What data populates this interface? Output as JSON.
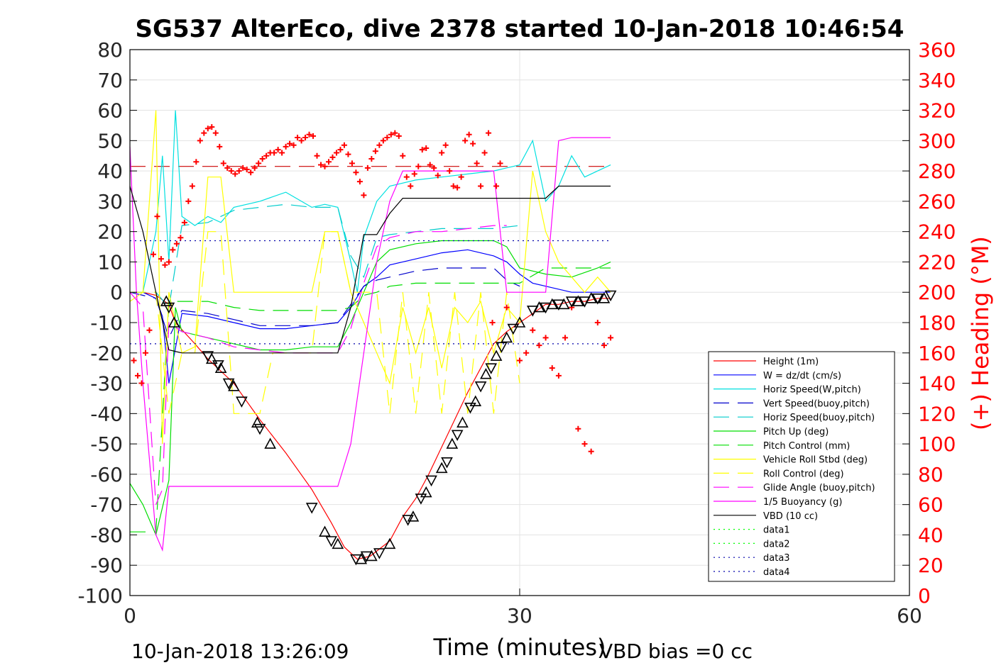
{
  "chart_data": {
    "type": "line",
    "title": "SG537 AlterEco, dive 2378 started 10-Jan-2018 10:46:54",
    "xlabel": "Time (minutes)",
    "ylabel_right": "(+) Heading (°M)",
    "xlim": [
      0,
      60
    ],
    "ylim": [
      -100,
      80
    ],
    "ylim_right": [
      0,
      360
    ],
    "xticks": [
      "0",
      "30",
      "60"
    ],
    "yticks": [
      "80",
      "70",
      "60",
      "50",
      "40",
      "30",
      "20",
      "10",
      "0",
      "-10",
      "-20",
      "-30",
      "-40",
      "-50",
      "-60",
      "-70",
      "-80",
      "-90",
      "-100"
    ],
    "yticks_right": [
      "360",
      "340",
      "320",
      "300",
      "280",
      "260",
      "240",
      "220",
      "200",
      "180",
      "160",
      "140",
      "120",
      "100",
      "80",
      "60",
      "40",
      "20",
      "0"
    ],
    "grid": true,
    "legend_position": "lower-right",
    "footer_left": "10-Jan-2018 13:26:09",
    "footer_right": "VBD bias =0 cc",
    "colors": {
      "heading": "#ff0000",
      "right_axis": "#ff0000"
    },
    "series": [
      {
        "name": "Height (1m)",
        "color": "#ff0000",
        "style": "solid",
        "x": [
          0,
          1,
          2,
          3,
          3.5,
          5,
          6,
          8,
          10,
          12,
          14,
          15.5,
          16.5,
          17.5,
          18.5,
          20,
          21,
          22,
          23,
          24,
          25,
          26,
          27,
          28,
          29,
          30,
          31,
          32,
          33,
          34,
          35,
          36,
          37
        ],
        "y": [
          0,
          0,
          -1,
          -4,
          -10,
          -17,
          -22,
          -30,
          -42,
          -53,
          -65,
          -76,
          -84,
          -88,
          -87,
          -82,
          -74,
          -68,
          -60,
          -51,
          -42,
          -33,
          -25,
          -17,
          -13,
          -10,
          -7,
          -4,
          -4,
          -3,
          -3,
          -2,
          -2
        ]
      },
      {
        "name": "W = dz/dt (cm/s)",
        "color": "#0000ff",
        "style": "solid",
        "x": [
          0,
          1,
          2,
          2.5,
          3,
          4,
          6,
          8,
          10,
          12,
          14,
          16,
          17,
          18,
          19,
          20,
          22,
          24,
          26,
          28,
          29,
          30,
          31,
          32,
          33,
          34,
          35,
          36,
          37
        ],
        "y": [
          0,
          0,
          -2,
          -8,
          -30,
          -7,
          -8,
          -10,
          -12,
          -12,
          -11,
          -10,
          -5,
          2,
          5,
          9,
          11,
          13,
          14,
          12,
          10,
          6,
          3,
          2,
          1,
          0,
          0,
          0,
          0
        ]
      },
      {
        "name": "Horiz Speed(W,pitch)",
        "color": "#00e0e0",
        "style": "solid",
        "x": [
          0,
          1,
          2,
          2.5,
          3,
          3.5,
          4,
          5,
          6,
          7,
          8,
          10,
          12,
          14,
          15,
          16,
          17,
          17.5,
          18,
          19,
          20,
          22,
          24,
          26,
          28,
          29,
          30,
          31,
          32,
          33,
          34,
          35,
          36,
          37
        ],
        "y": [
          0,
          0,
          20,
          45,
          10,
          60,
          25,
          22,
          25,
          23,
          28,
          30,
          33,
          28,
          29,
          28,
          10,
          0,
          18,
          30,
          35,
          37,
          38,
          39,
          40,
          41,
          42,
          50,
          30,
          35,
          45,
          38,
          40,
          42
        ]
      },
      {
        "name": "Vert Speed(buoy,pitch)",
        "color": "#0000cc",
        "style": "dashed",
        "x": [
          0,
          2,
          3,
          4,
          6,
          8,
          10,
          12,
          14,
          16,
          17,
          18,
          19,
          20,
          22,
          24,
          26,
          28,
          29,
          30
        ],
        "y": [
          0,
          -2,
          -15,
          -6,
          -7,
          -9,
          -11,
          -11,
          -11,
          -10,
          -4,
          2,
          4,
          5,
          7,
          8,
          8,
          8,
          4,
          2
        ]
      },
      {
        "name": "Horiz Speed(buoy,pitch)",
        "color": "#00cccc",
        "style": "dashed",
        "x": [
          0,
          2,
          3,
          4,
          6,
          8,
          10,
          12,
          14,
          16,
          17,
          18,
          19,
          20,
          22,
          24,
          26,
          28,
          30
        ],
        "y": [
          0,
          0,
          -5,
          22,
          23,
          27,
          28,
          29,
          28,
          28,
          12,
          5,
          18,
          19,
          20,
          21,
          21,
          21,
          22
        ]
      },
      {
        "name": "Pitch Up (deg)",
        "color": "#00dd00",
        "style": "solid",
        "x": [
          0,
          1,
          2,
          3,
          3.5,
          4,
          6,
          8,
          10,
          12,
          14,
          16,
          17,
          18,
          19,
          20,
          22,
          24,
          26,
          28,
          29,
          30,
          32,
          34,
          36,
          37
        ],
        "y": [
          -63,
          -70,
          -80,
          -62,
          -5,
          -13,
          -15,
          -17,
          -19,
          -19,
          -18,
          -18,
          -10,
          0,
          10,
          14,
          16,
          17,
          17,
          17,
          15,
          8,
          6,
          5,
          8,
          10
        ]
      },
      {
        "name": "Pitch Control (mm)",
        "color": "#00dd00",
        "style": "dashed",
        "x": [
          0,
          2,
          3,
          4,
          6,
          8,
          10,
          12,
          14,
          16,
          17,
          18,
          19,
          20,
          22,
          24,
          26,
          28,
          30,
          32,
          34,
          36,
          37
        ],
        "y": [
          -79,
          -79,
          -3,
          -3,
          -3,
          -5,
          -6,
          -6,
          -6,
          -6,
          -5,
          -1,
          0,
          2,
          3,
          3,
          3,
          3,
          3,
          8,
          8,
          8,
          8
        ]
      },
      {
        "name": "Vehicle Roll Stbd (deg)",
        "color": "#ffff00",
        "style": "solid",
        "x": [
          0,
          1,
          2,
          2.5,
          3,
          4,
          5,
          6,
          7,
          8,
          9,
          10,
          11,
          12,
          13,
          14,
          15,
          16,
          17,
          18,
          19,
          20,
          21,
          22,
          23,
          24,
          25,
          26,
          27,
          28,
          29,
          30,
          31,
          32,
          33,
          34,
          35,
          36,
          37
        ],
        "y": [
          -3,
          0,
          60,
          -50,
          0,
          -20,
          -18,
          38,
          38,
          0,
          0,
          0,
          0,
          0,
          0,
          0,
          20,
          20,
          0,
          -10,
          -20,
          -30,
          -5,
          -20,
          -5,
          -25,
          -5,
          -10,
          -3,
          -20,
          -5,
          -10,
          40,
          20,
          10,
          5,
          0,
          5,
          0
        ]
      },
      {
        "name": "Roll Control (deg)",
        "color": "#ffff00",
        "style": "dashed",
        "x": [
          0,
          2,
          3,
          4,
          5,
          6,
          7,
          8,
          9,
          10,
          11,
          12,
          14,
          15,
          16,
          17,
          18,
          19,
          20,
          21,
          22,
          23,
          24,
          25,
          26,
          27,
          28,
          29,
          30
        ],
        "y": [
          0,
          0,
          -40,
          -20,
          -20,
          20,
          20,
          -40,
          -40,
          -40,
          -20,
          -20,
          -20,
          20,
          20,
          0,
          0,
          0,
          -40,
          0,
          -40,
          0,
          -40,
          0,
          -40,
          0,
          -40,
          0,
          -30
        ]
      },
      {
        "name": "Glide Angle (buoy,pitch)",
        "color": "#ff00ff",
        "style": "dashed",
        "x": [
          0,
          1,
          2,
          2.5,
          3,
          4,
          6,
          8,
          10,
          12,
          14,
          16,
          17,
          18,
          19,
          20,
          22,
          24,
          26,
          28,
          29
        ],
        "y": [
          0,
          -5,
          -70,
          -65,
          -10,
          -13,
          -15,
          -18,
          -19,
          -20,
          -20,
          -20,
          -12,
          3,
          15,
          18,
          20,
          20,
          21,
          22,
          22
        ]
      },
      {
        "name": "1/5 Buoyancy (g)",
        "color": "#ff00ff",
        "style": "solid",
        "x": [
          0,
          0.5,
          1,
          2,
          2.5,
          3,
          4,
          10,
          16,
          17,
          18,
          19,
          20,
          21,
          22,
          28,
          29,
          30,
          32,
          33,
          34,
          36,
          37
        ],
        "y": [
          48,
          0,
          -30,
          -80,
          -85,
          -64,
          -64,
          -64,
          -64,
          -50,
          -20,
          10,
          30,
          40,
          40,
          40,
          0,
          0,
          0,
          50,
          51,
          51,
          51
        ]
      },
      {
        "name": "VBD (10 cc)",
        "color": "#000000",
        "style": "solid",
        "x": [
          0,
          1,
          2,
          3,
          4,
          10,
          16,
          17,
          18,
          19,
          20,
          21,
          22,
          26,
          30,
          32,
          33,
          34,
          37
        ],
        "y": [
          35,
          20,
          0,
          -19,
          -20,
          -20,
          -20,
          -5,
          19,
          19,
          26,
          31,
          31,
          31,
          31,
          31,
          35,
          35,
          35
        ]
      },
      {
        "name": "data1",
        "color": "#00ff00",
        "style": "dotted",
        "x": [],
        "y": []
      },
      {
        "name": "data2",
        "color": "#00ff00",
        "style": "dotted",
        "x": [],
        "y": []
      },
      {
        "name": "data3",
        "color": "#0000aa",
        "style": "dotted",
        "x": [
          0,
          37
        ],
        "y": [
          17,
          17
        ]
      },
      {
        "name": "data4",
        "color": "#0000aa",
        "style": "dotted",
        "x": [
          0,
          37
        ],
        "y": [
          -17,
          -17
        ]
      }
    ],
    "reference_lines": [
      {
        "color": "#cc0000",
        "style": "dashed",
        "axis": "right",
        "y": 283
      }
    ],
    "heading_points": {
      "x": [
        0.3,
        0.6,
        0.9,
        1.2,
        1.5,
        1.8,
        2.1,
        2.4,
        2.7,
        3.0,
        3.3,
        3.6,
        3.9,
        4.2,
        4.5,
        4.8,
        5.1,
        5.4,
        5.7,
        6.0,
        6.3,
        6.6,
        6.9,
        7.2,
        7.5,
        7.8,
        8.1,
        8.4,
        8.7,
        9.0,
        9.3,
        9.6,
        9.9,
        10.2,
        10.5,
        10.8,
        11.1,
        11.4,
        11.7,
        12.0,
        12.3,
        12.6,
        12.9,
        13.2,
        13.5,
        13.8,
        14.1,
        14.4,
        14.7,
        15.0,
        15.3,
        15.6,
        15.9,
        16.2,
        16.5,
        16.8,
        17.1,
        17.4,
        17.7,
        18.0,
        18.3,
        18.6,
        18.9,
        19.2,
        19.5,
        19.8,
        20.1,
        20.4,
        20.7,
        21.0,
        21.3,
        21.6,
        21.9,
        22.2,
        22.5,
        22.8,
        23.1,
        23.4,
        23.7,
        24.0,
        24.3,
        24.6,
        24.9,
        25.2,
        25.5,
        25.8,
        26.1,
        26.4,
        26.7,
        27.0,
        27.3,
        27.6,
        27.9,
        28.2,
        28.5,
        29.0,
        30.0,
        30.5,
        31.0,
        31.5,
        32.0,
        32.5,
        33.0,
        33.5,
        34.0,
        34.5,
        35.0,
        35.5,
        36.0,
        36.5,
        37.0
      ],
      "y": [
        155,
        145,
        140,
        160,
        175,
        225,
        250,
        222,
        218,
        220,
        228,
        232,
        236,
        246,
        260,
        270,
        286,
        300,
        305,
        308,
        309,
        305,
        296,
        285,
        282,
        280,
        278,
        280,
        282,
        281,
        279,
        282,
        285,
        288,
        290,
        292,
        292,
        294,
        292,
        296,
        298,
        297,
        302,
        300,
        302,
        304,
        303,
        290,
        284,
        283,
        286,
        289,
        292,
        294,
        297,
        291,
        285,
        279,
        273,
        264,
        282,
        288,
        293,
        297,
        300,
        302,
        304,
        305,
        303,
        290,
        276,
        270,
        278,
        283,
        294,
        295,
        284,
        282,
        277,
        292,
        297,
        280,
        270,
        269,
        276,
        300,
        304,
        298,
        285,
        270,
        292,
        305,
        180,
        270,
        285,
        190,
        155,
        160,
        175,
        165,
        170,
        150,
        145,
        170,
        190,
        110,
        100,
        95,
        180,
        165,
        170
      ]
    },
    "markers": {
      "symbol": "triangle",
      "x": [
        2.8,
        3.0,
        3.4,
        6.0,
        6.3,
        6.8,
        7.0,
        7.6,
        8.0,
        8.6,
        9.8,
        10.0,
        10.8,
        14.0,
        15.0,
        15.5,
        16.0,
        17.4,
        17.8,
        18.2,
        18.6,
        19.2,
        20.0,
        21.4,
        21.8,
        22.4,
        22.8,
        23.2,
        24.0,
        24.4,
        24.8,
        25.2,
        25.6,
        26.2,
        26.6,
        27.0,
        27.4,
        27.8,
        28.2,
        28.6,
        29.0,
        29.5,
        30.0,
        31.0,
        31.5,
        32.0,
        32.5,
        33.0,
        33.4,
        34.0,
        34.5,
        35.0,
        35.5,
        36.0,
        36.5,
        37.0
      ],
      "y": [
        -3,
        -5,
        -10,
        -21,
        -22,
        -24,
        -25,
        -30,
        -31,
        -36,
        -43,
        -45,
        -50,
        -71,
        -79,
        -82,
        -83,
        -88,
        -88,
        -87,
        -87,
        -86,
        -83,
        -75,
        -74,
        -68,
        -66,
        -62,
        -58,
        -56,
        -50,
        -47,
        -43,
        -38,
        -36,
        -31,
        -27,
        -25,
        -21,
        -18,
        -15,
        -12,
        -10,
        -6,
        -5,
        -5,
        -4,
        -4,
        -4,
        -3,
        -3,
        -3,
        -2,
        -2,
        -2,
        -1
      ]
    }
  }
}
